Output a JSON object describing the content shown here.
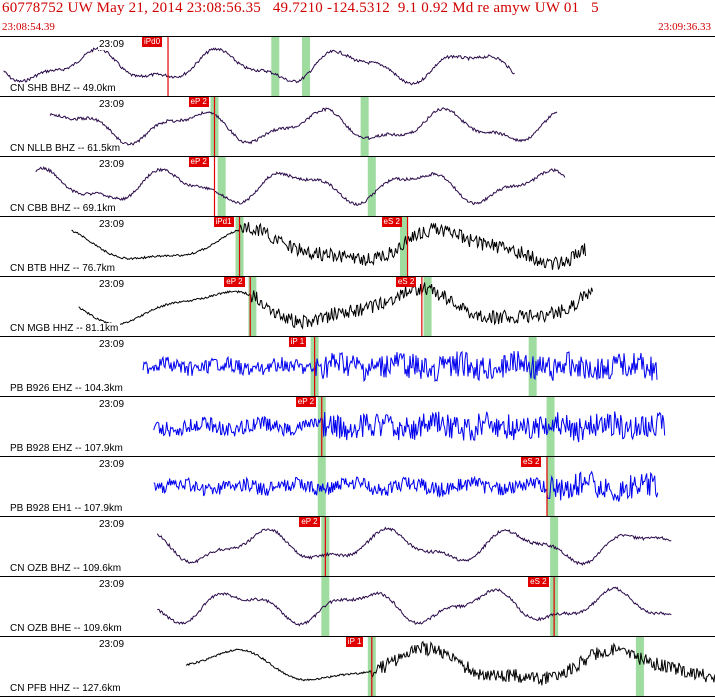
{
  "header": {
    "title": "60778752 UW May 21, 2014 23:08:56.35   49.7210 -124.5312  9.1 0.92 Md re amyw UW 01   5",
    "start_time": "23:08:54.39",
    "end_time": "23:09:36.33"
  },
  "colors": {
    "header_text": "#d00000",
    "pick_red": "#e00000",
    "window_green": "#9fdc9f",
    "trace_purple": "#2a0a4a",
    "trace_black": "#000000",
    "trace_blue": "#0000ee"
  },
  "traces": [
    {
      "station": "CN SHB BHZ -- 49.0km",
      "time_label": "23:09",
      "pick": "iPd0",
      "pick_red_x": 0.235,
      "color": "purple",
      "green": [
        0.385,
        0.428
      ],
      "kind": "smooth"
    },
    {
      "station": "CN NLLB BHZ -- 61.5km",
      "time_label": "23:09",
      "pick": "eP 2",
      "pick_red_x": 0.3,
      "color": "purple",
      "green": [
        0.3,
        0.51
      ],
      "kind": "smooth"
    },
    {
      "station": "CN CBB BHZ -- 69.1km",
      "time_label": "23:09",
      "pick": "eP 2",
      "pick_red_x": 0.3,
      "color": "purple",
      "green": [
        0.31,
        0.52
      ],
      "kind": "smooth"
    },
    {
      "station": "CN BTB HHZ -- 76.7km",
      "time_label": "23:09",
      "pick": "iPd1",
      "pick_red_x": 0.335,
      "pick2": "eS 2",
      "pick2_red_x": 0.57,
      "color": "black",
      "green": [
        0.335,
        0.565
      ],
      "kind": "mixed"
    },
    {
      "station": "CN MGB HHZ -- 81.1km",
      "time_label": "23:09",
      "pick": "eP 2",
      "pick_red_x": 0.35,
      "pick2": "eS 2",
      "pick2_red_x": 0.59,
      "color": "black",
      "green": [
        0.353,
        0.598
      ],
      "kind": "mixed"
    },
    {
      "station": "PB B926 EHZ -- 104.3km",
      "time_label": "23:09",
      "pick": "iP 1",
      "pick_red_x": 0.44,
      "color": "blue",
      "green": [
        0.44,
        0.745
      ],
      "kind": "noisy"
    },
    {
      "station": "PB B928 EHZ -- 107.9km",
      "time_label": "23:09",
      "pick": "eP 2",
      "pick_red_x": 0.45,
      "color": "blue",
      "green": [
        0.45,
        0.77
      ],
      "kind": "noisy"
    },
    {
      "station": "PB B928 EH1 -- 107.9km",
      "time_label": "23:09",
      "pick": "eS 2",
      "pick_red_x": 0.765,
      "color": "blue",
      "green": [
        0.45,
        0.77
      ],
      "kind": "noisy"
    },
    {
      "station": "CN OZB BHZ -- 109.6km",
      "time_label": "23:09",
      "pick": "eP 2",
      "pick_red_x": 0.455,
      "color": "purple",
      "green": [
        0.455,
        0.775
      ],
      "kind": "smooth"
    },
    {
      "station": "CN OZB BHE -- 109.6km",
      "time_label": "23:09",
      "pick": "eS 2",
      "pick_red_x": 0.775,
      "color": "purple",
      "green": [
        0.455,
        0.775
      ],
      "kind": "smooth"
    },
    {
      "station": "CN PFB HHZ -- 127.6km",
      "time_label": "23:09",
      "pick": "iP 1",
      "pick_red_x": 0.52,
      "color": "black",
      "green": [
        0.52,
        0.895
      ],
      "kind": "mixed"
    }
  ]
}
